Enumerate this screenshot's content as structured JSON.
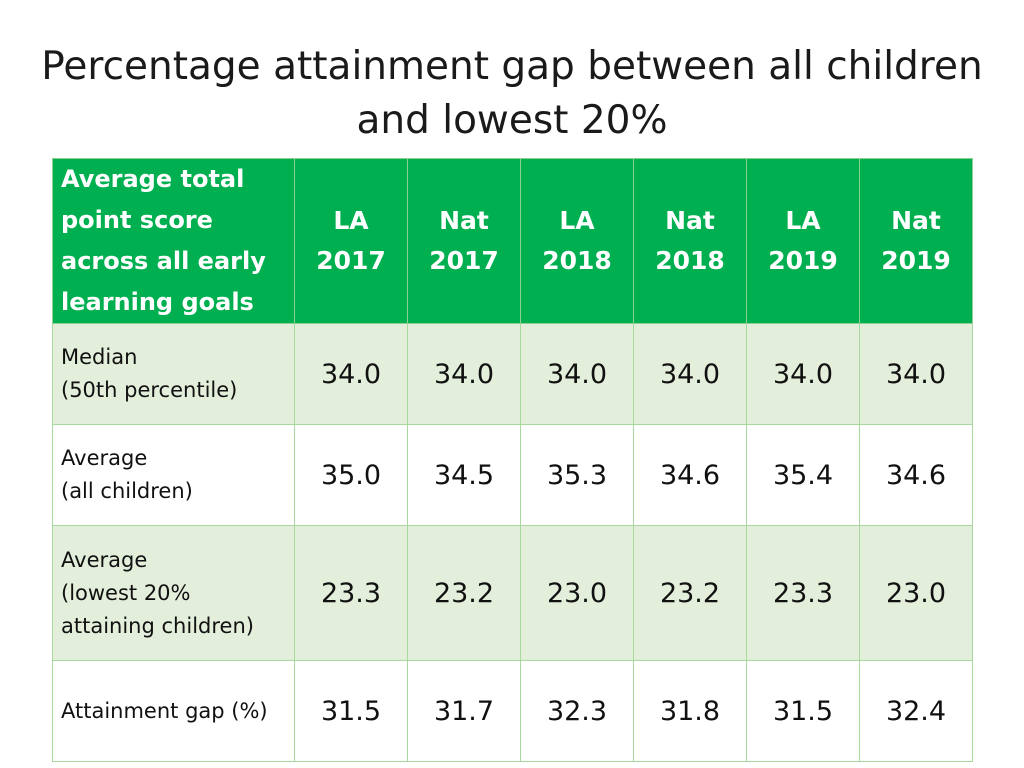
{
  "title": {
    "line1": "Percentage attainment gap between all children",
    "line2": "and lowest 20%"
  },
  "table": {
    "corner_header": [
      "Average  total",
      "point score",
      "across all early",
      "learning goals"
    ],
    "columns": [
      {
        "group": "LA",
        "year": "2017"
      },
      {
        "group": "Nat",
        "year": "2017"
      },
      {
        "group": "LA",
        "year": "2018"
      },
      {
        "group": "Nat",
        "year": "2018"
      },
      {
        "group": "LA",
        "year": "2019"
      },
      {
        "group": "Nat",
        "year": "2019"
      }
    ],
    "rows": [
      {
        "label": [
          "Median",
          "(50th percentile)"
        ],
        "values": [
          "34.0",
          "34.0",
          "34.0",
          "34.0",
          "34.0",
          "34.0"
        ]
      },
      {
        "label": [
          "Average",
          "(all children)"
        ],
        "values": [
          "35.0",
          "34.5",
          "35.3",
          "34.6",
          "35.4",
          "34.6"
        ]
      },
      {
        "label": [
          "Average",
          "(lowest 20%",
          "attaining children)"
        ],
        "values": [
          "23.3",
          "23.2",
          "23.0",
          "23.2",
          "23.3",
          "23.0"
        ]
      },
      {
        "label": [
          "Attainment gap (%)"
        ],
        "values": [
          "31.5",
          "31.7",
          "32.3",
          "31.8",
          "31.5",
          "32.4"
        ]
      }
    ]
  },
  "colors": {
    "header_green": "#00b050",
    "row_shade": "#e3eedb",
    "grid_line": "#a9d89f"
  }
}
